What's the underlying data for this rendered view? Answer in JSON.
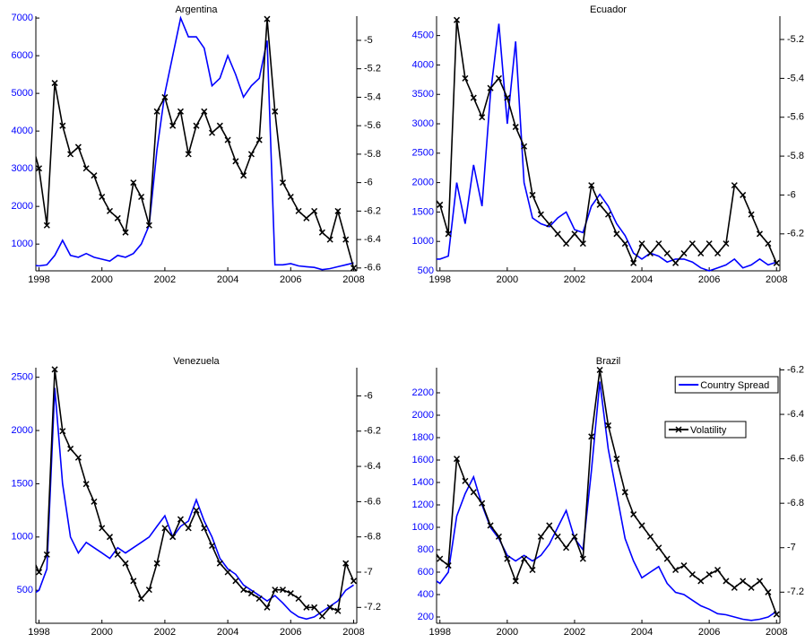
{
  "chart_data": [
    {
      "type": "line",
      "title": "Argentina",
      "x": [
        1997.75,
        1998,
        1998.25,
        1998.5,
        1998.75,
        1999,
        1999.25,
        1999.5,
        1999.75,
        2000,
        2000.25,
        2000.5,
        2000.75,
        2001,
        2001.25,
        2001.5,
        2001.75,
        2002,
        2002.25,
        2002.5,
        2002.75,
        2003,
        2003.25,
        2003.5,
        2003.75,
        2004,
        2004.25,
        2004.5,
        2004.75,
        2005,
        2005.25,
        2005.5,
        2005.75,
        2006,
        2006.25,
        2006.5,
        2006.75,
        2007,
        2007.25,
        2007.5,
        2007.75,
        2008
      ],
      "xlim": [
        1997.9,
        2008.1
      ],
      "xticks": [
        1998,
        2000,
        2002,
        2004,
        2006,
        2008
      ],
      "ylim": [
        290,
        7050
      ],
      "yticks": [
        1000,
        2000,
        3000,
        4000,
        5000,
        6000,
        7000
      ],
      "y2lim": [
        -6.62,
        -4.83
      ],
      "y2ticks": [
        -6.6,
        -6.4,
        -6.2,
        -6,
        -5.8,
        -5.6,
        -5.4,
        -5.2,
        -5
      ],
      "series": [
        {
          "color": "#0000ff",
          "values": [
            450,
            420,
            450,
            700,
            1100,
            700,
            650,
            750,
            650,
            600,
            550,
            700,
            650,
            750,
            1000,
            1500,
            3500,
            5000,
            6000,
            7000,
            6500,
            6500,
            6200,
            5200,
            5400,
            6000,
            5500,
            4900,
            5200,
            5400,
            6400,
            450,
            450,
            480,
            420,
            400,
            380,
            320,
            350,
            400,
            450,
            500
          ]
        },
        {
          "color": "#000000",
          "axis": "y2",
          "marker": "x",
          "values": [
            -5.7,
            -5.9,
            -6.3,
            -5.3,
            -5.6,
            -5.8,
            -5.75,
            -5.9,
            -5.95,
            -6.1,
            -6.2,
            -6.25,
            -6.35,
            -6.0,
            -6.1,
            -6.3,
            -5.5,
            -5.4,
            -5.6,
            -5.5,
            -5.8,
            -5.6,
            -5.5,
            -5.65,
            -5.6,
            -5.7,
            -5.85,
            -5.95,
            -5.8,
            -5.7,
            -4.85,
            -5.5,
            -6.0,
            -6.1,
            -6.2,
            -6.25,
            -6.2,
            -6.35,
            -6.4,
            -6.2,
            -6.4,
            -6.6
          ]
        }
      ]
    },
    {
      "type": "line",
      "title": "Ecuador",
      "x": [
        1997.75,
        1998,
        1998.25,
        1998.5,
        1998.75,
        1999,
        1999.25,
        1999.5,
        1999.75,
        2000,
        2000.25,
        2000.5,
        2000.75,
        2001,
        2001.25,
        2001.5,
        2001.75,
        2002,
        2002.25,
        2002.5,
        2002.75,
        2003,
        2003.25,
        2003.5,
        2003.75,
        2004,
        2004.25,
        2004.5,
        2004.75,
        2005,
        2005.25,
        2005.5,
        2005.75,
        2006,
        2006.25,
        2006.5,
        2006.75,
        2007,
        2007.25,
        2007.5,
        2007.75,
        2008
      ],
      "xlim": [
        1997.9,
        2008.1
      ],
      "xticks": [
        1998,
        2000,
        2002,
        2004,
        2006,
        2008
      ],
      "ylim": [
        500,
        4830
      ],
      "yticks": [
        500,
        1000,
        1500,
        2000,
        2500,
        3000,
        3500,
        4000,
        4500
      ],
      "y2lim": [
        -6.39,
        -5.08
      ],
      "y2ticks": [
        -6.2,
        -6,
        -5.8,
        -5.6,
        -5.4,
        -5.2
      ],
      "series": [
        {
          "color": "#0000ff",
          "values": [
            700,
            700,
            750,
            2000,
            1300,
            2300,
            1600,
            3500,
            4700,
            3000,
            4400,
            2000,
            1400,
            1300,
            1250,
            1400,
            1500,
            1200,
            1150,
            1600,
            1800,
            1600,
            1300,
            1100,
            800,
            700,
            800,
            750,
            650,
            700,
            700,
            650,
            550,
            500,
            550,
            600,
            700,
            550,
            600,
            700,
            600,
            650
          ]
        },
        {
          "color": "#000000",
          "axis": "y2",
          "marker": "x",
          "values": [
            -6.0,
            -6.05,
            -6.2,
            -5.1,
            -5.4,
            -5.5,
            -5.6,
            -5.45,
            -5.4,
            -5.5,
            -5.65,
            -5.75,
            -6.0,
            -6.1,
            -6.15,
            -6.2,
            -6.25,
            -6.2,
            -6.25,
            -5.95,
            -6.05,
            -6.1,
            -6.2,
            -6.25,
            -6.35,
            -6.25,
            -6.3,
            -6.25,
            -6.3,
            -6.35,
            -6.3,
            -6.25,
            -6.3,
            -6.25,
            -6.3,
            -6.25,
            -5.95,
            -6.0,
            -6.1,
            -6.2,
            -6.25,
            -6.35
          ]
        }
      ]
    },
    {
      "type": "line",
      "title": "Venezuela",
      "x": [
        1997.75,
        1998,
        1998.25,
        1998.5,
        1998.75,
        1999,
        1999.25,
        1999.5,
        1999.75,
        2000,
        2000.25,
        2000.5,
        2000.75,
        2001,
        2001.25,
        2001.5,
        2001.75,
        2002,
        2002.25,
        2002.5,
        2002.75,
        2003,
        2003.25,
        2003.5,
        2003.75,
        2004,
        2004.25,
        2004.5,
        2004.75,
        2005,
        2005.25,
        2005.5,
        2005.75,
        2006,
        2006.25,
        2006.5,
        2006.75,
        2007,
        2007.25,
        2007.5,
        2007.75,
        2008
      ],
      "xlim": [
        1997.9,
        2008.1
      ],
      "xticks": [
        1998,
        2000,
        2002,
        2004,
        2006,
        2008
      ],
      "ylim": [
        190,
        2590
      ],
      "yticks": [
        500,
        1000,
        1500,
        2000,
        2500
      ],
      "y2lim": [
        -7.29,
        -5.84
      ],
      "y2ticks": [
        -7.2,
        -7,
        -6.8,
        -6.6,
        -6.4,
        -6.2,
        -6
      ],
      "series": [
        {
          "color": "#0000ff",
          "values": [
            450,
            500,
            700,
            2400,
            1500,
            1000,
            850,
            950,
            900,
            850,
            800,
            900,
            850,
            900,
            950,
            1000,
            1100,
            1200,
            1000,
            1100,
            1150,
            1350,
            1150,
            1000,
            800,
            700,
            650,
            550,
            500,
            450,
            400,
            450,
            380,
            300,
            250,
            230,
            250,
            300,
            350,
            400,
            500,
            550
          ]
        },
        {
          "color": "#000000",
          "axis": "y2",
          "marker": "x",
          "values": [
            -6.9,
            -7.0,
            -6.9,
            -5.85,
            -6.2,
            -6.3,
            -6.35,
            -6.5,
            -6.6,
            -6.75,
            -6.8,
            -6.9,
            -6.95,
            -7.05,
            -7.15,
            -7.1,
            -6.95,
            -6.75,
            -6.8,
            -6.7,
            -6.75,
            -6.65,
            -6.75,
            -6.85,
            -6.95,
            -7.0,
            -7.05,
            -7.1,
            -7.12,
            -7.15,
            -7.2,
            -7.1,
            -7.1,
            -7.12,
            -7.15,
            -7.2,
            -7.2,
            -7.25,
            -7.2,
            -7.22,
            -6.95,
            -7.05
          ]
        }
      ]
    },
    {
      "type": "line",
      "title": "Brazil",
      "legend": "upper right",
      "x": [
        1997.75,
        1998,
        1998.25,
        1998.5,
        1998.75,
        1999,
        1999.25,
        1999.5,
        1999.75,
        2000,
        2000.25,
        2000.5,
        2000.75,
        2001,
        2001.25,
        2001.5,
        2001.75,
        2002,
        2002.25,
        2002.5,
        2002.75,
        2003,
        2003.25,
        2003.5,
        2003.75,
        2004,
        2004.25,
        2004.5,
        2004.75,
        2005,
        2005.25,
        2005.5,
        2005.75,
        2006,
        2006.25,
        2006.5,
        2006.75,
        2007,
        2007.25,
        2007.5,
        2007.75,
        2008
      ],
      "xlim": [
        1997.9,
        2008.1
      ],
      "xticks": [
        1998,
        2000,
        2002,
        2004,
        2006,
        2008
      ],
      "ylim": [
        144,
        2424
      ],
      "yticks": [
        200,
        400,
        600,
        800,
        1000,
        1200,
        1400,
        1600,
        1800,
        2000,
        2200
      ],
      "y2lim": [
        -7.34,
        -6.19
      ],
      "y2ticks": [
        -7.2,
        -7,
        -6.8,
        -6.6,
        -6.4,
        -6.2
      ],
      "series": [
        {
          "name": "Country Spread",
          "color": "#0000ff",
          "values": [
            550,
            500,
            600,
            1100,
            1300,
            1450,
            1200,
            1000,
            900,
            750,
            700,
            750,
            700,
            750,
            850,
            1000,
            1150,
            900,
            800,
            1500,
            2300,
            1700,
            1300,
            900,
            700,
            550,
            600,
            650,
            500,
            420,
            400,
            350,
            300,
            270,
            230,
            220,
            200,
            180,
            170,
            180,
            200,
            250
          ]
        },
        {
          "name": "Volatility",
          "color": "#000000",
          "axis": "y2",
          "marker": "x",
          "values": [
            -7.0,
            -7.05,
            -7.08,
            -6.6,
            -6.7,
            -6.75,
            -6.8,
            -6.9,
            -6.95,
            -7.05,
            -7.15,
            -7.05,
            -7.1,
            -6.95,
            -6.9,
            -6.95,
            -7.0,
            -6.95,
            -7.05,
            -6.5,
            -6.2,
            -6.45,
            -6.6,
            -6.75,
            -6.85,
            -6.9,
            -6.95,
            -7.0,
            -7.05,
            -7.1,
            -7.08,
            -7.12,
            -7.15,
            -7.12,
            -7.1,
            -7.15,
            -7.18,
            -7.15,
            -7.18,
            -7.15,
            -7.2,
            -7.3
          ]
        }
      ]
    }
  ]
}
